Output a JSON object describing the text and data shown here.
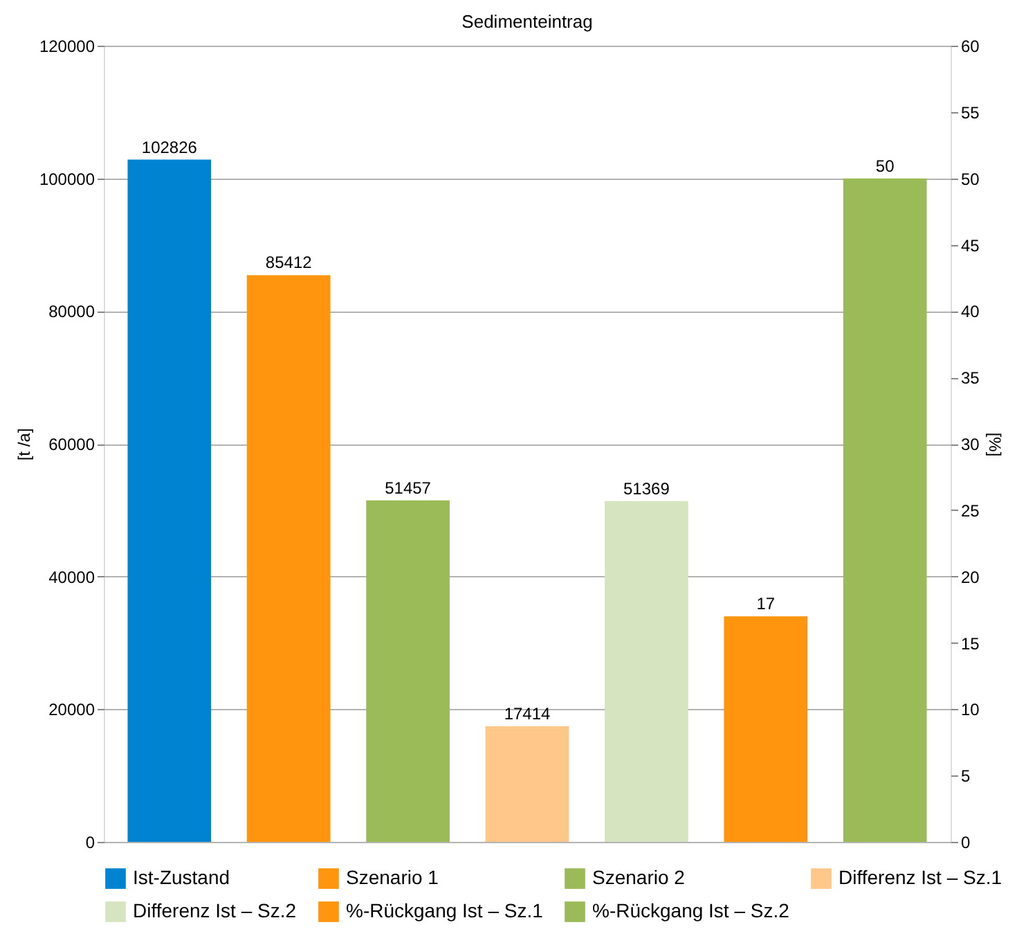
{
  "chart_data": {
    "type": "bar",
    "title": "Sedimenteintrag",
    "ylabel": "[t /a]",
    "y2label": "[%]",
    "categories": [
      null,
      null,
      null,
      null,
      null,
      null,
      null
    ],
    "series": [
      {
        "name": "Ist-Zustand",
        "color": "#0084d1",
        "values": [
          102826,
          null,
          null,
          null,
          null,
          null,
          null
        ]
      },
      {
        "name": "Szenario 1",
        "color": "#ff950e",
        "values": [
          null,
          85412,
          null,
          null,
          null,
          null,
          null
        ]
      },
      {
        "name": "Szenario 2",
        "color": "#9bbb59",
        "values": [
          null,
          null,
          51457,
          null,
          null,
          null,
          null
        ]
      },
      {
        "name": "Differenz Ist – Sz.1",
        "color": "#ffc88a",
        "values": [
          null,
          null,
          null,
          17414,
          null,
          null,
          null
        ]
      },
      {
        "name": "Differenz Ist – Sz.2",
        "color": "#d6e5bf",
        "values": [
          null,
          null,
          null,
          null,
          51369,
          null,
          null
        ]
      },
      {
        "name": "%-Rückgang Ist – Sz.1",
        "color": "#ff950e",
        "axis": "y2",
        "values": [
          null,
          null,
          null,
          null,
          null,
          17,
          null
        ]
      },
      {
        "name": "%-Rückgang Ist – Sz.2",
        "color": "#9bbb59",
        "axis": "y2",
        "values": [
          null,
          null,
          null,
          null,
          null,
          null,
          50
        ]
      }
    ],
    "ylim": [
      0,
      120000
    ],
    "yticks": [
      0,
      20000,
      40000,
      60000,
      80000,
      100000,
      120000
    ],
    "y2lim": [
      0,
      60
    ],
    "y2ticks": [
      0,
      5,
      10,
      15,
      20,
      25,
      30,
      35,
      40,
      45,
      50,
      55,
      60
    ],
    "grid": "y",
    "legend": "bottom",
    "data_labels": true
  }
}
